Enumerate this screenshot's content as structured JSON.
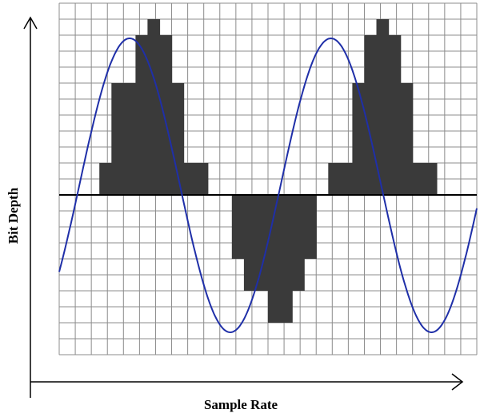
{
  "labels": {
    "x_axis": "Sample Rate",
    "y_axis": "Bit Depth"
  },
  "colors": {
    "wave": "#1f2fa8",
    "bars": "#3a3a3a",
    "grid": "#8c8c8c",
    "axes": "#000000",
    "background": "#ffffff"
  },
  "diagram": {
    "grid_columns": 26,
    "grid_rows": 22,
    "baseline_row": 12,
    "wave": {
      "periods": 2.5,
      "amplitude_rows": 9.2
    },
    "quantized_levels": [
      0,
      0,
      2,
      7,
      7,
      10,
      11,
      10,
      7,
      2,
      2,
      0,
      0,
      -4,
      -6,
      -6,
      -8,
      -8,
      -6,
      -4,
      0,
      2,
      2,
      7,
      10,
      11,
      10,
      7,
      2,
      2,
      0
    ]
  }
}
